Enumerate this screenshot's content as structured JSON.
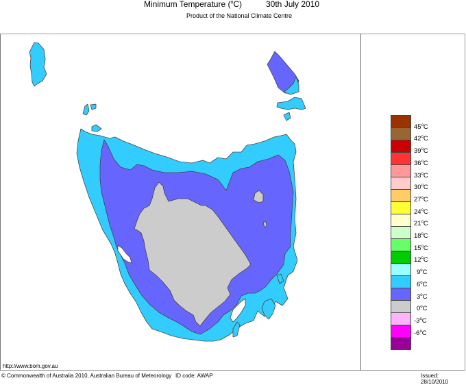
{
  "header": {
    "title": "Minimum Temperature (",
    "title_unit_sup": "o",
    "title_unit_tail": "C)",
    "date": "30th July 2010",
    "subtitle": "Product of the National Climate Centre"
  },
  "map": {
    "region": "Tasmania",
    "zones": [
      {
        "name": "3-6C",
        "color": "#6666ff"
      },
      {
        "name": "6-9C",
        "color": "#33ccff"
      },
      {
        "name": "0-3C",
        "color": "#cccccc"
      }
    ]
  },
  "legend": {
    "swatches": [
      {
        "color": "#993300"
      },
      {
        "color": "#996633"
      },
      {
        "color": "#cc0000"
      },
      {
        "color": "#ff3333"
      },
      {
        "color": "#ff9999"
      },
      {
        "color": "#ffcccc"
      },
      {
        "color": "#ffcc66"
      },
      {
        "color": "#ffff33"
      },
      {
        "color": "#ffffcc"
      },
      {
        "color": "#ccffcc"
      },
      {
        "color": "#66ff66"
      },
      {
        "color": "#00cc00"
      },
      {
        "color": "#99ffff"
      },
      {
        "color": "#33ccff"
      },
      {
        "color": "#6666ff"
      },
      {
        "color": "#cccccc"
      },
      {
        "color": "#ffb3ff"
      },
      {
        "color": "#ff00ff"
      },
      {
        "color": "#990099"
      }
    ],
    "labels": [
      "45",
      "42",
      "39",
      "36",
      "33",
      "30",
      "27",
      "24",
      "21",
      "18",
      "15",
      "12",
      "9",
      "6",
      "3",
      "0",
      "-3",
      "-6"
    ],
    "unit_sup": "o",
    "unit": "C"
  },
  "footer": {
    "url": "http://www.bom.gov.au",
    "copyright": "© Commonwealth of Australia 2010, Australian Bureau of Meteorology",
    "id_code": "ID code: AWAP",
    "issued": "Issued: 28/10/2010"
  }
}
